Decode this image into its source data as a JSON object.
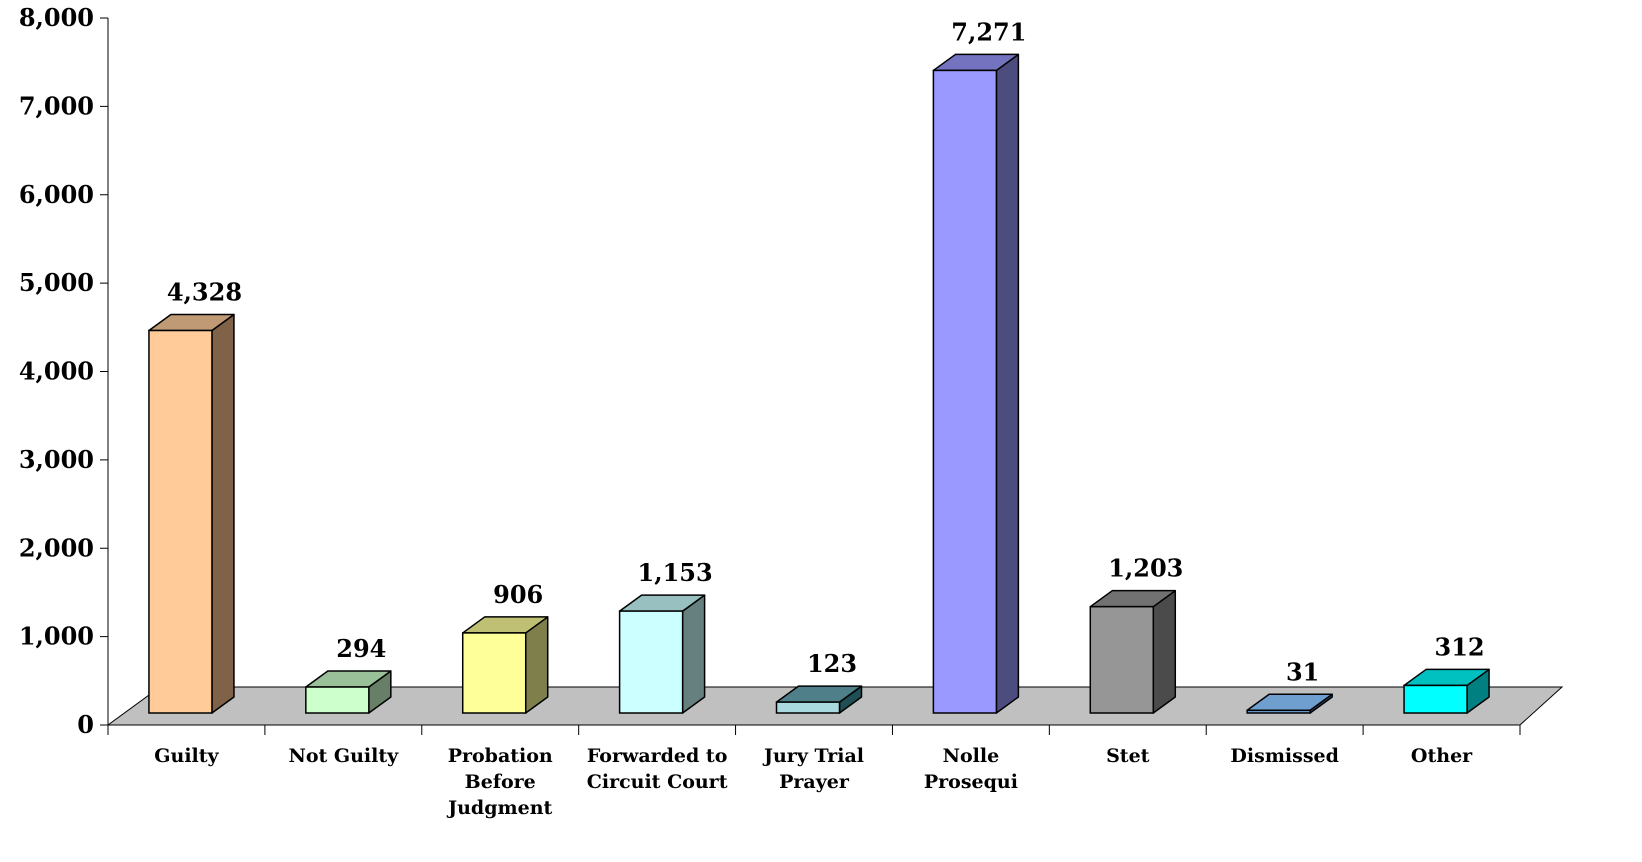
{
  "chart_data": {
    "type": "bar",
    "title": "",
    "xlabel": "",
    "ylabel": "",
    "ylim": [
      0,
      8000
    ],
    "y_ticks": [
      "0",
      "1,000",
      "2,000",
      "3,000",
      "4,000",
      "5,000",
      "6,000",
      "7,000",
      "8,000"
    ],
    "y_tick_values": [
      0,
      1000,
      2000,
      3000,
      4000,
      5000,
      6000,
      7000,
      8000
    ],
    "categories": [
      [
        "Guilty"
      ],
      [
        "Not Guilty"
      ],
      [
        "Probation",
        "Before",
        "Judgment"
      ],
      [
        "Forwarded to",
        "Circuit Court"
      ],
      [
        "Jury Trial",
        "Prayer"
      ],
      [
        "Nolle",
        "Prosequi"
      ],
      [
        "Stet"
      ],
      [
        "Dismissed"
      ],
      [
        "Other"
      ]
    ],
    "values": [
      4328,
      294,
      906,
      1153,
      123,
      7271,
      1203,
      31,
      312
    ],
    "data_labels": [
      "4,328",
      "294",
      "906",
      "1,153",
      "123",
      "7,271",
      "1,203",
      "31",
      "312"
    ],
    "bar_colors": [
      {
        "front": "#FFCC99",
        "top": "#C09A75",
        "side": "#7F6248"
      },
      {
        "front": "#CCFFCC",
        "top": "#99C099",
        "side": "#667F66"
      },
      {
        "front": "#FFFF99",
        "top": "#C0C075",
        "side": "#7F7F4C"
      },
      {
        "front": "#CCFFFF",
        "top": "#99C0C0",
        "side": "#667F7F"
      },
      {
        "front": "#A8DADF",
        "top": "#4F7F88",
        "side": "#1F4F55"
      },
      {
        "front": "#9999FF",
        "top": "#7373C0",
        "side": "#4C4C7F"
      },
      {
        "front": "#969696",
        "top": "#717171",
        "side": "#4B4B4B"
      },
      {
        "front": "#6699CC",
        "top": "#6F9FCF",
        "side": "#33557F"
      },
      {
        "front": "#00FFFF",
        "top": "#00C0C0",
        "side": "#008080"
      }
    ],
    "floor_color": "#C0C0C0",
    "grid": false,
    "legend": "none"
  }
}
